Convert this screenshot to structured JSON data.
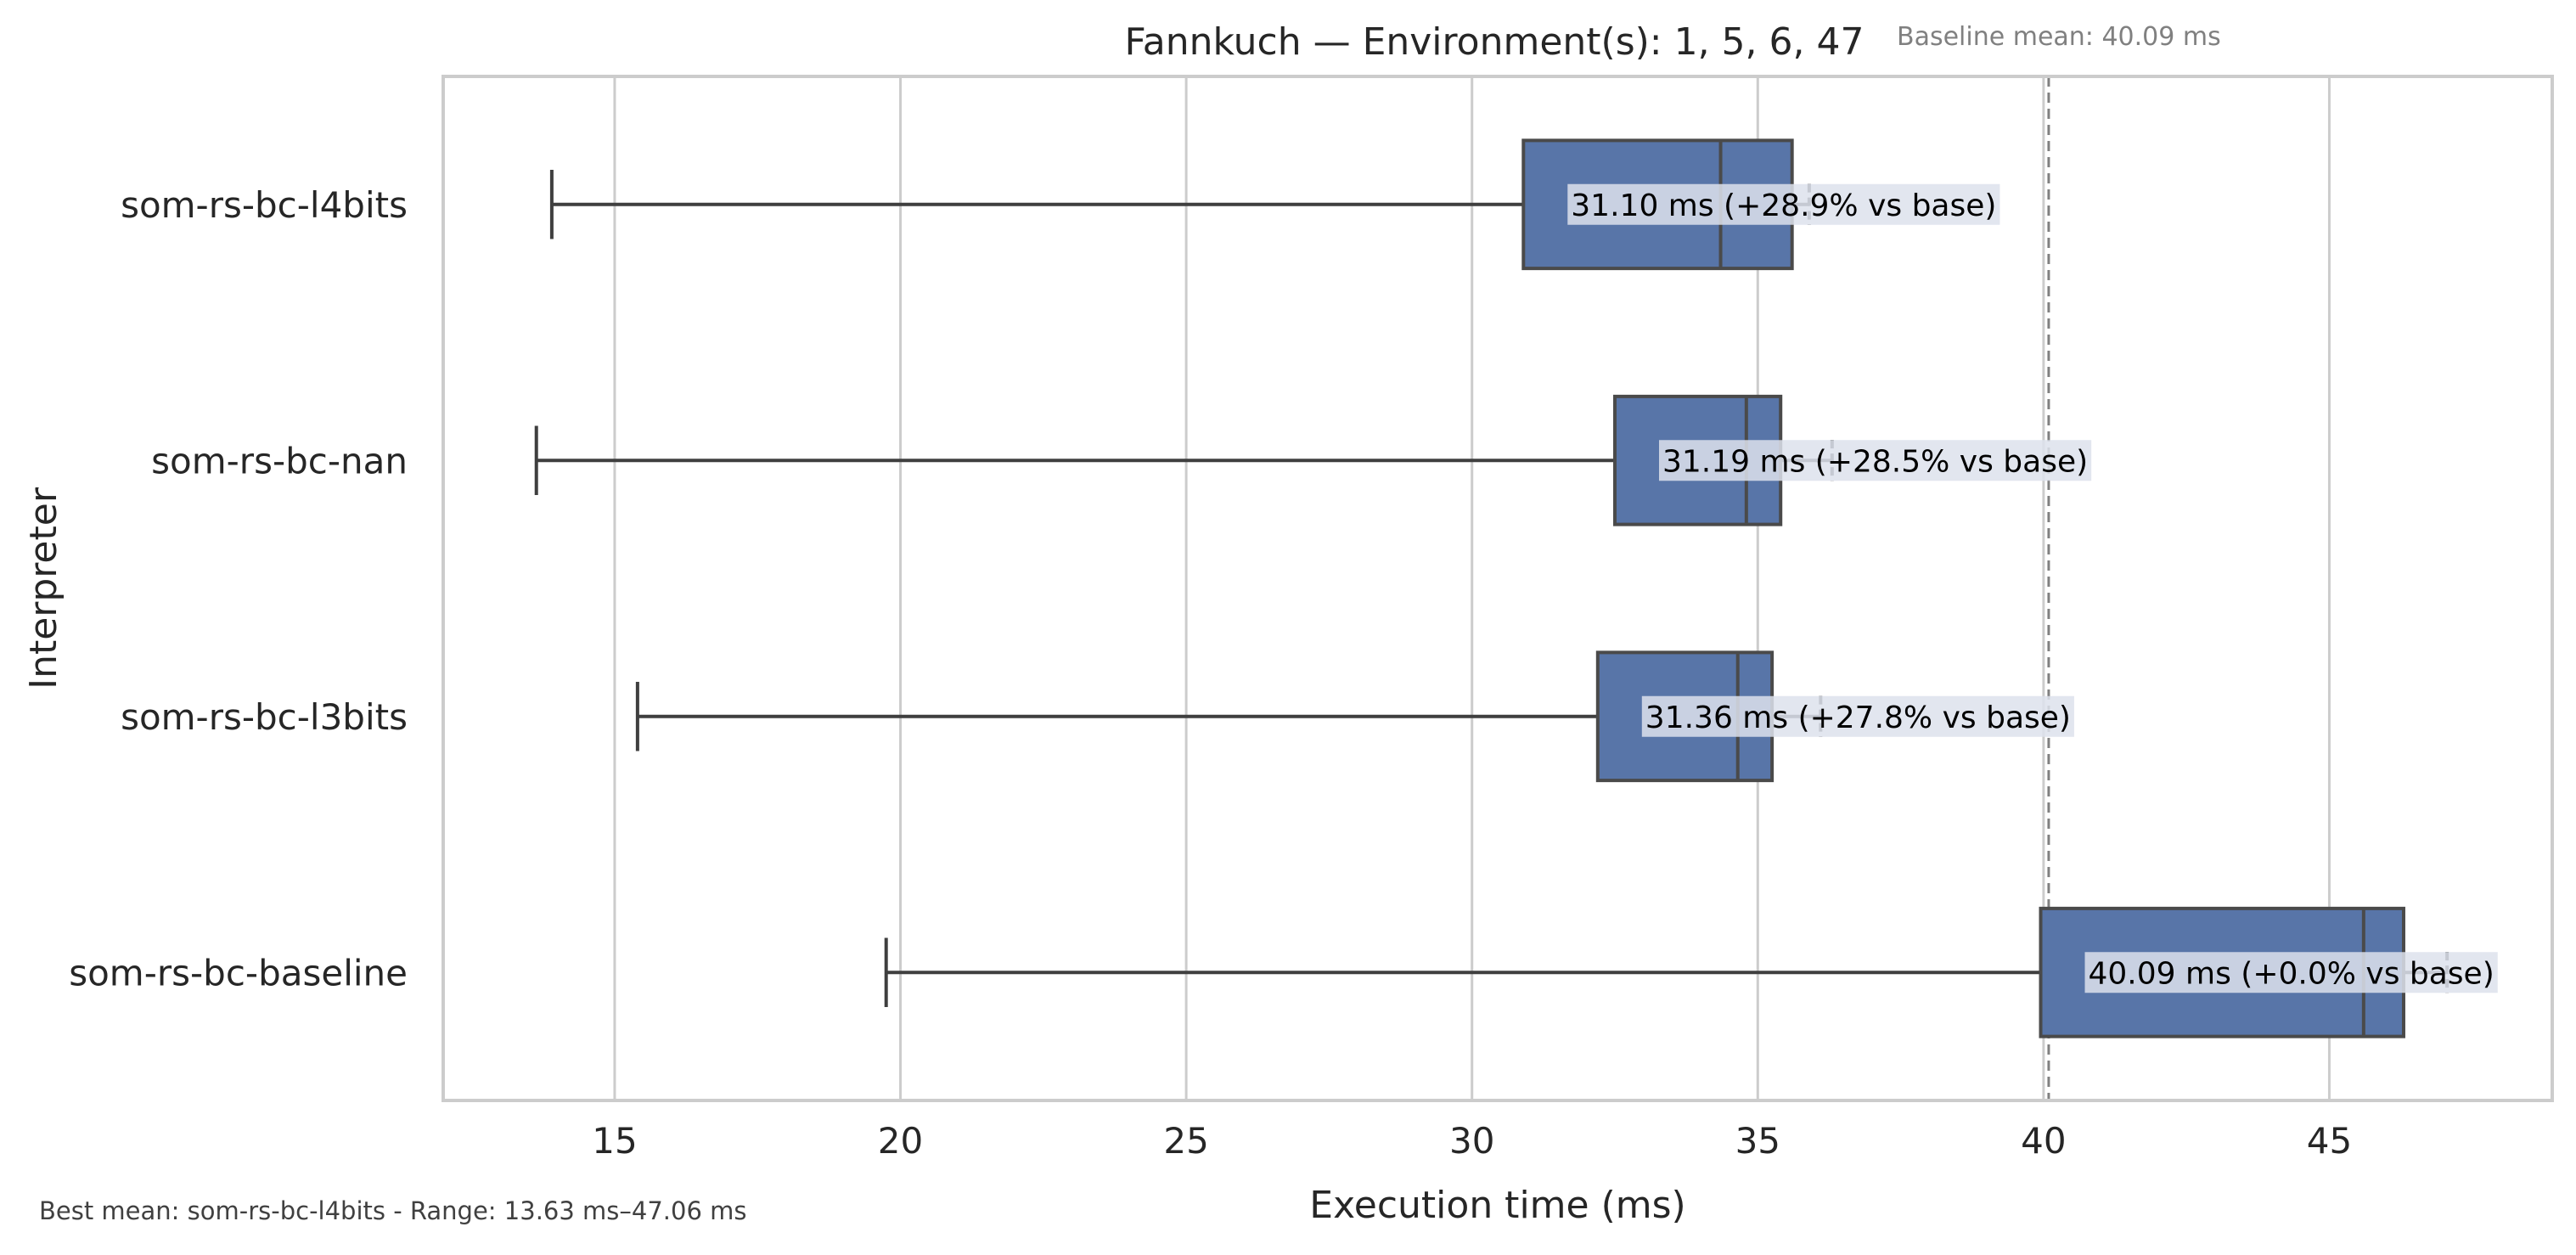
{
  "chart_data": {
    "type": "boxplot",
    "orientation": "horizontal",
    "title": "Fannkuch — Environment(s): 1, 5, 6, 47",
    "baseline_note": "Baseline mean: 40.09 ms",
    "footer_note": "Best mean: som-rs-bc-l4bits - Range: 13.63 ms–47.06 ms",
    "xlabel": "Execution time (ms)",
    "ylabel": "Interpreter",
    "xlim": [
      12,
      48.9
    ],
    "xticks": [
      15,
      20,
      25,
      30,
      35,
      40,
      45
    ],
    "grid": "vertical",
    "baseline_value": 40.09,
    "series": [
      {
        "category": "som-rs-bc-l4bits",
        "whisker_low": 13.9,
        "q1": 30.9,
        "median": 34.35,
        "q3": 35.6,
        "whisker_high": 35.9,
        "label": "31.10 ms  (+28.9% vs base)"
      },
      {
        "category": "som-rs-bc-nan",
        "whisker_low": 13.63,
        "q1": 32.5,
        "median": 34.8,
        "q3": 35.4,
        "whisker_high": 36.3,
        "label": "31.19 ms  (+28.5% vs base)"
      },
      {
        "category": "som-rs-bc-l3bits",
        "whisker_low": 15.4,
        "q1": 32.2,
        "median": 34.65,
        "q3": 35.25,
        "whisker_high": 36.1,
        "label": "31.36 ms  (+27.8% vs base)"
      },
      {
        "category": "som-rs-bc-baseline",
        "whisker_low": 19.75,
        "q1": 39.95,
        "median": 45.6,
        "q3": 46.3,
        "whisker_high": 47.06,
        "label": "40.09 ms  (+0.0% vs base)"
      }
    ],
    "colors": {
      "box_fill": "#5875a8",
      "box_edge": "#4a4a4a",
      "whisker": "#3f3f3f",
      "grid": "#cccccc",
      "frame": "#cccccc",
      "baseline_line": "#808080",
      "label_bg": "#dde2ec",
      "text": "#262626",
      "note": "#808080"
    }
  }
}
